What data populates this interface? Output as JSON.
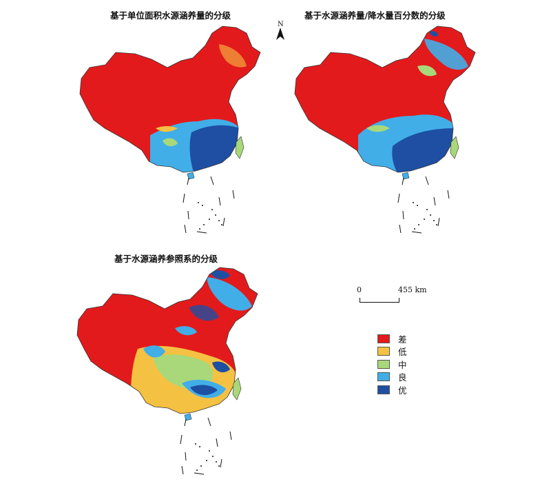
{
  "maps": [
    {
      "title": "基于单位面积水源涵养量的分级",
      "icon": "china-choropleth-map"
    },
    {
      "title": "基于水源涵养量/降水量百分数的分级",
      "icon": "china-choropleth-map"
    },
    {
      "title": "基于水源涵养参照系的分级",
      "icon": "china-choropleth-map"
    }
  ],
  "north_arrow": {
    "label": "N",
    "icon": "north-arrow-icon"
  },
  "scale_bar": {
    "start": "0",
    "end": "455 km"
  },
  "legend": {
    "items": [
      {
        "label": "差",
        "color": "#e31a1c"
      },
      {
        "label": "低",
        "color": "#f5c142"
      },
      {
        "label": "中",
        "color": "#a8d87a"
      },
      {
        "label": "良",
        "color": "#41aee8"
      },
      {
        "label": "优",
        "color": "#1e4fa3"
      }
    ]
  }
}
